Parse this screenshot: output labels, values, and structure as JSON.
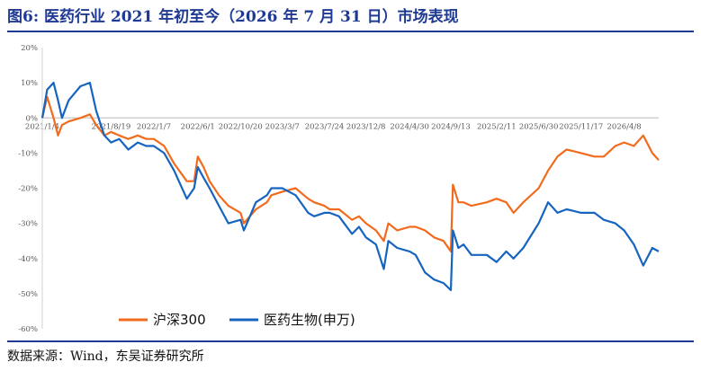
{
  "header": {
    "title": "图6:  医药行业 2021 年初至今（2026 年 7 月 31 日）市场表现"
  },
  "footer": {
    "source": "数据来源：Wind，东吴证券研究所"
  },
  "chart_data": {
    "type": "line",
    "title": "",
    "xlabel": "",
    "ylabel": "",
    "ylim": [
      -60,
      20
    ],
    "y_ticks": [
      20,
      10,
      0,
      -10,
      -20,
      -30,
      -40,
      -50,
      -60
    ],
    "y_tick_labels": [
      "20%",
      "10%",
      "0%",
      "-10%",
      "-20%",
      "-30%",
      "-40%",
      "-50%",
      "-60%"
    ],
    "x_tick_labels": [
      "2021/1/4",
      "2021/8/19",
      "2022/1/7",
      "2022/6/1",
      "2022/10/20",
      "2023/3/7",
      "2023/7/24",
      "2023/12/8",
      "2024/4/30",
      "2024/9/13",
      "2025/2/11",
      "2025/6/30",
      "2025/11/17",
      "2026/4/8"
    ],
    "x_tick_dates": [
      "2021-01-04",
      "2021-08-19",
      "2022-01-07",
      "2022-06-01",
      "2022-10-20",
      "2023-03-07",
      "2023-07-24",
      "2023-12-08",
      "2024-04-30",
      "2024-09-13",
      "2025-02-11",
      "2025-06-30",
      "2025-11-17",
      "2026-04-08"
    ],
    "xlim": [
      "2021-01-04",
      "2026-07-31"
    ],
    "grid": false,
    "legend_position": "bottom",
    "series": [
      {
        "name": "沪深300",
        "color": "#f26b1d",
        "dates": [
          "2021-01-04",
          "2021-01-20",
          "2021-02-10",
          "2021-02-25",
          "2021-03-10",
          "2021-04-01",
          "2021-05-10",
          "2021-06-10",
          "2021-07-01",
          "2021-07-28",
          "2021-08-19",
          "2021-09-15",
          "2021-10-15",
          "2021-11-15",
          "2021-12-13",
          "2022-01-07",
          "2022-02-10",
          "2022-03-15",
          "2022-04-26",
          "2022-05-20",
          "2022-06-01",
          "2022-06-20",
          "2022-07-10",
          "2022-08-10",
          "2022-09-10",
          "2022-10-20",
          "2022-10-31",
          "2022-12-10",
          "2023-01-15",
          "2023-01-30",
          "2023-03-07",
          "2023-04-20",
          "2023-05-31",
          "2023-06-20",
          "2023-07-24",
          "2023-08-10",
          "2023-09-10",
          "2023-10-23",
          "2023-11-15",
          "2023-12-08",
          "2024-01-10",
          "2024-02-05",
          "2024-02-20",
          "2024-03-20",
          "2024-04-30",
          "2024-05-20",
          "2024-06-20",
          "2024-07-20",
          "2024-08-20",
          "2024-09-13",
          "2024-09-20",
          "2024-10-08",
          "2024-10-25",
          "2024-11-20",
          "2025-01-10",
          "2025-02-11",
          "2025-03-15",
          "2025-04-08",
          "2025-05-10",
          "2025-06-30",
          "2025-07-31",
          "2025-08-31",
          "2025-09-30",
          "2025-11-17",
          "2025-12-31",
          "2026-01-31",
          "2026-03-10",
          "2026-04-08",
          "2026-05-10",
          "2026-06-10",
          "2026-07-10",
          "2026-07-31"
        ],
        "values": [
          0,
          6,
          0,
          -5,
          -2,
          -1,
          0,
          1,
          -2,
          -5,
          -4,
          -5,
          -6,
          -5,
          -6,
          -6,
          -8,
          -13,
          -18,
          -18,
          -11,
          -14,
          -18,
          -22,
          -25,
          -27,
          -30,
          -26,
          -24,
          -22,
          -21,
          -20,
          -23,
          -24,
          -25,
          -26,
          -26,
          -29,
          -28,
          -30,
          -32,
          -35,
          -30,
          -32,
          -31,
          -31,
          -32,
          -34,
          -35,
          -38,
          -19,
          -24,
          -24,
          -25,
          -24,
          -23,
          -24,
          -27,
          -24,
          -20,
          -15,
          -11,
          -9,
          -10,
          -11,
          -11,
          -8,
          -7,
          -8,
          -5,
          -10,
          -12
        ]
      },
      {
        "name": "医药生物(申万)",
        "color": "#1565c0",
        "dates": [
          "2021-01-04",
          "2021-01-20",
          "2021-02-10",
          "2021-02-25",
          "2021-03-10",
          "2021-04-01",
          "2021-05-10",
          "2021-06-10",
          "2021-07-01",
          "2021-07-28",
          "2021-08-19",
          "2021-09-15",
          "2021-10-15",
          "2021-11-15",
          "2021-12-13",
          "2022-01-07",
          "2022-02-10",
          "2022-03-15",
          "2022-04-26",
          "2022-05-20",
          "2022-06-01",
          "2022-06-20",
          "2022-07-10",
          "2022-08-10",
          "2022-09-10",
          "2022-10-20",
          "2022-10-31",
          "2022-12-10",
          "2023-01-15",
          "2023-01-30",
          "2023-03-07",
          "2023-04-20",
          "2023-05-31",
          "2023-06-20",
          "2023-07-24",
          "2023-08-10",
          "2023-09-10",
          "2023-10-23",
          "2023-11-15",
          "2023-12-08",
          "2024-01-10",
          "2024-02-05",
          "2024-02-20",
          "2024-03-20",
          "2024-04-30",
          "2024-05-20",
          "2024-06-20",
          "2024-07-20",
          "2024-08-20",
          "2024-09-13",
          "2024-09-20",
          "2024-10-08",
          "2024-10-25",
          "2024-11-20",
          "2025-01-10",
          "2025-02-11",
          "2025-03-15",
          "2025-04-08",
          "2025-05-10",
          "2025-06-30",
          "2025-07-31",
          "2025-08-31",
          "2025-09-30",
          "2025-11-17",
          "2025-12-31",
          "2026-01-31",
          "2026-03-10",
          "2026-04-08",
          "2026-05-10",
          "2026-06-10",
          "2026-07-10",
          "2026-07-31"
        ],
        "values": [
          0,
          8,
          10,
          5,
          0,
          5,
          9,
          10,
          2,
          -5,
          -7,
          -6,
          -9,
          -7,
          -8,
          -8,
          -10,
          -15,
          -23,
          -20,
          -14,
          -17,
          -20,
          -25,
          -30,
          -29,
          -32,
          -24,
          -22,
          -20,
          -20,
          -22,
          -27,
          -28,
          -27,
          -27,
          -28,
          -33,
          -31,
          -34,
          -36,
          -43,
          -35,
          -37,
          -38,
          -39,
          -44,
          -46,
          -47,
          -49,
          -32,
          -37,
          -36,
          -39,
          -39,
          -41,
          -38,
          -40,
          -37,
          -30,
          -24,
          -27,
          -26,
          -27,
          -27,
          -29,
          -30,
          -32,
          -36,
          -42,
          -37,
          -38
        ]
      }
    ]
  }
}
